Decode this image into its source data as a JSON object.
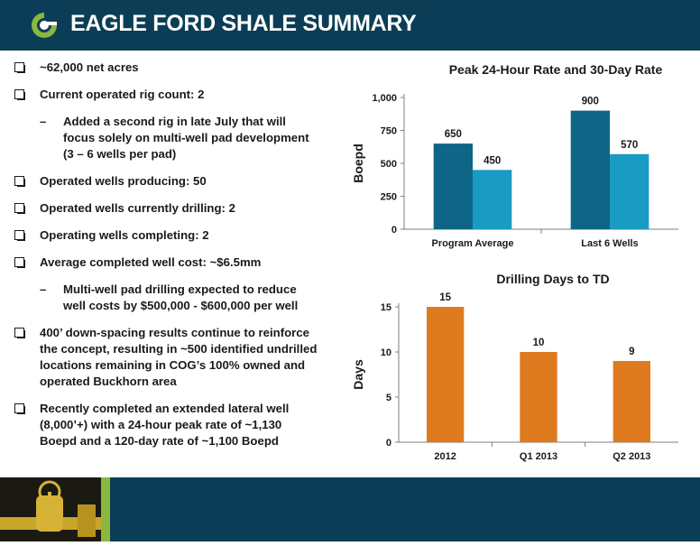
{
  "header": {
    "title": "EAGLE FORD SHALE SUMMARY",
    "logo_icon": "company-logo-icon",
    "background_color": "#0b3e56",
    "logo_color": "#8bb73f"
  },
  "bullets": [
    {
      "text": "~62,000 net acres",
      "sub": []
    },
    {
      "text": "Current operated rig count:  2",
      "sub": [
        "Added a second rig in late July that will focus solely on multi-well pad development (3 – 6 wells per pad)"
      ]
    },
    {
      "text": "Operated wells producing:  50",
      "sub": []
    },
    {
      "text": "Operated wells currently drilling:  2",
      "sub": []
    },
    {
      "text": "Operating wells completing:  2",
      "sub": []
    },
    {
      "text": "Average completed well cost:  ~$6.5mm",
      "sub": [
        "Multi-well pad drilling expected to reduce well costs by $500,000 - $600,000 per well"
      ]
    },
    {
      "text": "400’ down-spacing results continue to reinforce the concept, resulting in ~500 identified undrilled locations remaining in COG’s 100% owned and operated Buckhorn area",
      "sub": []
    },
    {
      "text": "Recently completed an extended lateral well (8,000’+) with a 24-hour peak rate of ~1,130 Boepd and a 120-day rate of ~1,100 Boepd",
      "sub": []
    }
  ],
  "chart_data": [
    {
      "type": "bar",
      "title": "Peak 24-Hour Rate and 30-Day Rate",
      "categories": [
        "Program Average",
        "Last 6 Wells"
      ],
      "series": [
        {
          "values": [
            650,
            900
          ],
          "color": "#0e6585"
        },
        {
          "values": [
            450,
            570
          ],
          "color": "#1a9bc4"
        }
      ],
      "data_labels": [
        [
          "650",
          "900"
        ],
        [
          "450",
          "570"
        ]
      ],
      "xlabel": "",
      "ylabel": "Boepd",
      "ylim": [
        0,
        1000
      ],
      "yticks": [
        0,
        250,
        500,
        750,
        1000
      ],
      "ytick_labels": [
        "0",
        "250",
        "500",
        "750",
        "1,000"
      ],
      "grid": false,
      "legend": "none"
    },
    {
      "type": "bar",
      "title": "Drilling Days to TD",
      "categories": [
        "2012",
        "Q1 2013",
        "Q2 2013"
      ],
      "series": [
        {
          "values": [
            15,
            10,
            9
          ],
          "color": "#e07a1f"
        }
      ],
      "data_labels": [
        [
          "15",
          "10",
          "9"
        ]
      ],
      "xlabel": "",
      "ylabel": "Days",
      "ylim": [
        0,
        15
      ],
      "yticks": [
        0,
        5,
        10,
        15
      ],
      "ytick_labels": [
        "0",
        "5",
        "10",
        "15"
      ],
      "grid": false,
      "legend": "none"
    }
  ],
  "footer": {
    "background_color": "#0b3e56",
    "accent_color": "#8bb73f",
    "image_icon": "pipeline-valve-photo"
  }
}
